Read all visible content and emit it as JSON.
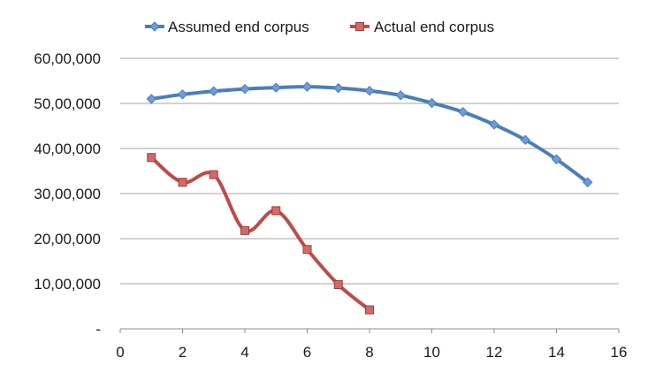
{
  "chart_data": {
    "type": "line",
    "title": "",
    "xlabel": "",
    "ylabel": "",
    "xlim": [
      0,
      16
    ],
    "ylim": [
      0,
      6000000
    ],
    "x_ticks": [
      0,
      2,
      4,
      6,
      8,
      10,
      12,
      14,
      16
    ],
    "x_tick_labels": [
      "0",
      "2",
      "4",
      "6",
      "8",
      "10",
      "12",
      "14",
      "16"
    ],
    "y_ticks": [
      0,
      1000000,
      2000000,
      3000000,
      4000000,
      5000000,
      6000000
    ],
    "y_tick_labels": [
      "-",
      "10,00,000",
      "20,00,000",
      "30,00,000",
      "40,00,000",
      "50,00,000",
      "60,00,000"
    ],
    "grid": {
      "horizontal": true,
      "vertical": false
    },
    "legend_position": "top",
    "series": [
      {
        "name": "Assumed end corpus",
        "color": "#4a7ebb",
        "marker": "diamond",
        "smooth": true,
        "points": [
          [
            1,
            5100000
          ],
          [
            2,
            5200000
          ],
          [
            3,
            5270000
          ],
          [
            4,
            5320000
          ],
          [
            5,
            5350000
          ],
          [
            6,
            5370000
          ],
          [
            7,
            5340000
          ],
          [
            8,
            5280000
          ],
          [
            9,
            5180000
          ],
          [
            10,
            5010000
          ],
          [
            11,
            4810000
          ],
          [
            12,
            4530000
          ],
          [
            13,
            4190000
          ],
          [
            14,
            3760000
          ],
          [
            15,
            3250000
          ]
        ]
      },
      {
        "name": "Actual end corpus",
        "color": "#be4b48",
        "marker": "square",
        "smooth": true,
        "points": [
          [
            1,
            3800000
          ],
          [
            2,
            3250000
          ],
          [
            3,
            3420000
          ],
          [
            4,
            2180000
          ],
          [
            5,
            2620000
          ],
          [
            6,
            1760000
          ],
          [
            7,
            980000
          ],
          [
            8,
            420000
          ]
        ]
      }
    ]
  }
}
